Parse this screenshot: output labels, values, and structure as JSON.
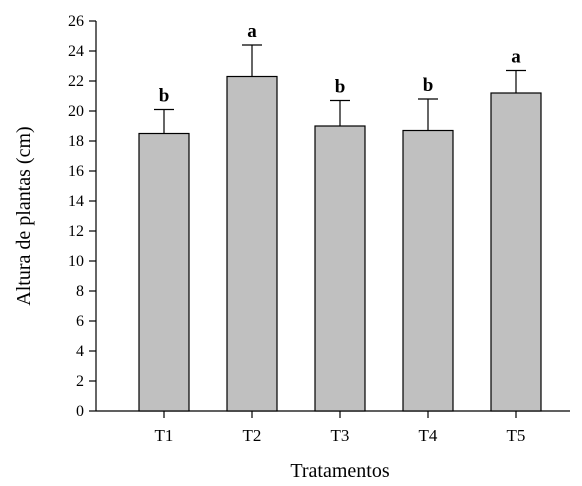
{
  "chart_data": {
    "type": "bar",
    "title": "",
    "xlabel": "Tratamentos",
    "ylabel": "Altura de plantas (cm)",
    "ylim": [
      0,
      26
    ],
    "ytick_step": 2,
    "categories": [
      "T1",
      "T2",
      "T3",
      "T4",
      "T5"
    ],
    "values": [
      18.5,
      22.3,
      19.0,
      18.7,
      21.2
    ],
    "errors": [
      1.6,
      2.1,
      1.7,
      2.1,
      1.5
    ],
    "letters": [
      "b",
      "a",
      "b",
      "b",
      "a"
    ],
    "grid": false,
    "legend": "none",
    "bar_color": "#c0c0c0",
    "edge_color": "#000000"
  }
}
